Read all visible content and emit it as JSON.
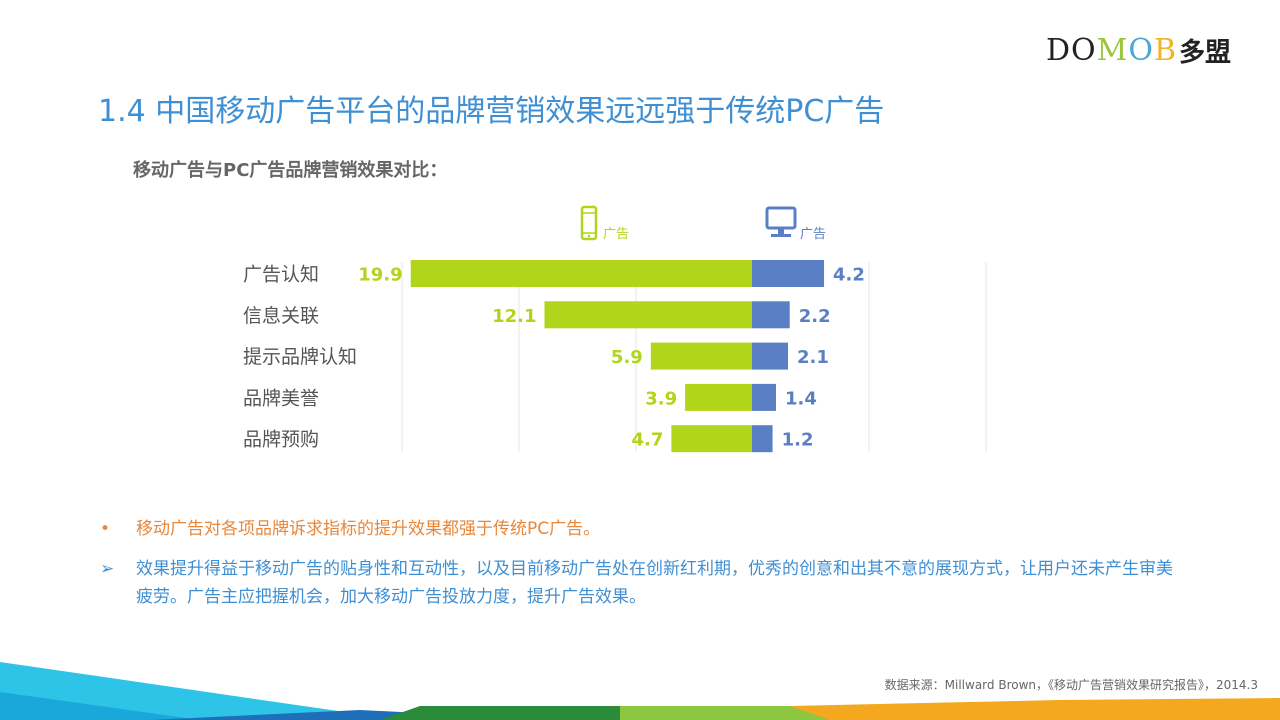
{
  "logo": {
    "text_parts": [
      "DO",
      "M",
      "O",
      "B"
    ],
    "text_cn": "多盟"
  },
  "title": "1.4 中国移动广告平台的品牌营销效果远远强于传统PC广告",
  "subtitle": "移动广告与PC广告品牌营销效果对比：",
  "chart_data": {
    "type": "bar",
    "orientation": "horizontal-diverging",
    "categories": [
      "广告认知",
      "信息关联",
      "提示品牌认知",
      "品牌美誉",
      "品牌预购"
    ],
    "series": [
      {
        "name": "广告",
        "icon": "mobile-phone-icon",
        "color": "#b0d51a",
        "values": [
          19.9,
          12.1,
          5.9,
          3.9,
          4.7
        ]
      },
      {
        "name": "广告",
        "icon": "desktop-monitor-icon",
        "color": "#5b7fc4",
        "values": [
          4.2,
          2.2,
          2.1,
          1.4,
          1.2
        ]
      }
    ],
    "grid": true,
    "xlim": [
      -20,
      13.5
    ]
  },
  "bullets": [
    {
      "mark": "•",
      "text": "移动广告对各项品牌诉求指标的提升效果都强于传统PC广告。"
    },
    {
      "mark": "➢",
      "text": "效果提升得益于移动广告的贴身性和互动性，以及目前移动广告处在创新红利期，优秀的创意和出其不意的展现方式，让用户还未产生审美疲劳。广告主应把握机会，加大移动广告投放力度，提升广告效果。"
    }
  ],
  "source": "数据来源：Millward   Brown，《移动广告营销效果研究报告》，2014.3",
  "colors": {
    "title": "#3e8fd3",
    "orange": "#e8873a",
    "mobile": "#b0d51a",
    "pc": "#5b7fc4"
  }
}
